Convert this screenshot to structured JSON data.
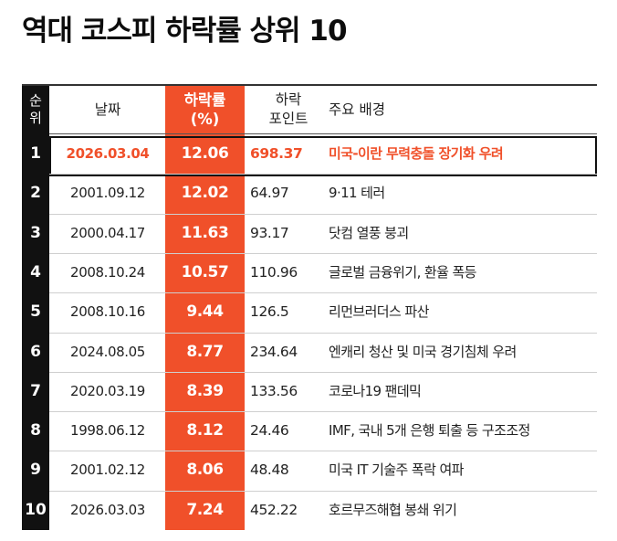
{
  "title": "역대 코스피 하락률 상위 10",
  "headers": {
    "rank": [
      "순",
      "위"
    ],
    "date": [
      "날짜"
    ],
    "rate": [
      "하락률",
      "(%)"
    ],
    "points": [
      "하락",
      "포인트"
    ],
    "background": [
      "주요 배경"
    ]
  },
  "colors": {
    "accent": "#f0502a",
    "rank_column": "#111111",
    "text": "#222222"
  },
  "highlight_rank": 1,
  "chart_data": {
    "type": "table",
    "title": "역대 코스피 하락률 상위 10",
    "columns": [
      "순위",
      "날짜",
      "하락률 (%)",
      "하락 포인트",
      "주요 배경"
    ],
    "rows": [
      {
        "rank": "1",
        "date": "2026.03.04",
        "rate": "12.06",
        "points": "698.37",
        "background": "미국-이란 무력충돌 장기화 우려"
      },
      {
        "rank": "2",
        "date": "2001.09.12",
        "rate": "12.02",
        "points": "64.97",
        "background": "9·11 테러"
      },
      {
        "rank": "3",
        "date": "2000.04.17",
        "rate": "11.63",
        "points": "93.17",
        "background": "닷컴 열풍 붕괴"
      },
      {
        "rank": "4",
        "date": "2008.10.24",
        "rate": "10.57",
        "points": "110.96",
        "background": "글로벌 금융위기, 환율 폭등"
      },
      {
        "rank": "5",
        "date": "2008.10.16",
        "rate": "9.44",
        "points": "126.5",
        "background": "리먼브러더스 파산"
      },
      {
        "rank": "6",
        "date": "2024.08.05",
        "rate": "8.77",
        "points": "234.64",
        "background": "엔캐리 청산 및 미국 경기침체 우려"
      },
      {
        "rank": "7",
        "date": "2020.03.19",
        "rate": "8.39",
        "points": "133.56",
        "background": "코로나19 팬데믹"
      },
      {
        "rank": "8",
        "date": "1998.06.12",
        "rate": "8.12",
        "points": "24.46",
        "background": "IMF, 국내 5개 은행 퇴출 등 구조조정"
      },
      {
        "rank": "9",
        "date": "2001.02.12",
        "rate": "8.06",
        "points": "48.48",
        "background": "미국 IT 기술주 폭락 여파"
      },
      {
        "rank": "10",
        "date": "2026.03.03",
        "rate": "7.24",
        "points": "452.22",
        "background": "호르무즈해협 봉쇄 위기"
      }
    ]
  }
}
